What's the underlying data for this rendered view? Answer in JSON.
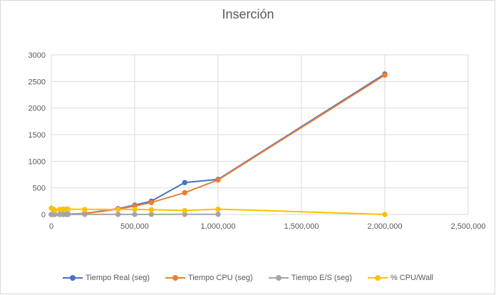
{
  "chart_data": {
    "type": "line",
    "title": "Inserción",
    "xlabel": "",
    "ylabel": "",
    "xlim": [
      0,
      2500000
    ],
    "ylim": [
      0,
      3000
    ],
    "x_ticks": [
      "0",
      "500,000",
      "1,000,000",
      "1,500,000",
      "2,000,000",
      "2,500,000"
    ],
    "y_ticks": [
      "0",
      "500",
      "1000",
      "1500",
      "2000",
      "2500",
      "3000"
    ],
    "grid": true,
    "legend_position": "bottom",
    "series": [
      {
        "name": "Tiempo Real (seg)",
        "color": "#4472C4",
        "x": [
          0,
          10000,
          20000,
          50000,
          70000,
          90000,
          100000,
          200000,
          400000,
          500000,
          600000,
          800000,
          1000000,
          2000000
        ],
        "y": [
          1,
          1,
          2,
          3,
          4,
          5,
          6,
          20,
          110,
          175,
          250,
          600,
          660,
          2640
        ]
      },
      {
        "name": "Tiempo CPU (seg)",
        "color": "#ED7D31",
        "x": [
          0,
          10000,
          20000,
          50000,
          70000,
          90000,
          100000,
          200000,
          400000,
          500000,
          600000,
          800000,
          1000000,
          2000000
        ],
        "y": [
          1,
          1,
          2,
          3,
          4,
          5,
          6,
          18,
          100,
          160,
          225,
          410,
          650,
          2620
        ]
      },
      {
        "name": "Tiempo E/S (seg)",
        "color": "#A5A5A5",
        "x": [
          0,
          10000,
          20000,
          50000,
          70000,
          90000,
          100000,
          200000,
          400000,
          500000,
          600000,
          800000,
          1000000
        ],
        "y": [
          0,
          0,
          0,
          0,
          0,
          0,
          0,
          1,
          2,
          2,
          2,
          3,
          4
        ]
      },
      {
        "name": "% CPU/Wall",
        "color": "#FFC000",
        "x": [
          0,
          10000,
          20000,
          50000,
          70000,
          90000,
          100000,
          200000,
          400000,
          500000,
          600000,
          800000,
          1000000,
          2000000
        ],
        "y": [
          120,
          100,
          80,
          95,
          100,
          100,
          100,
          95,
          95,
          95,
          90,
          75,
          100,
          0
        ]
      }
    ]
  }
}
